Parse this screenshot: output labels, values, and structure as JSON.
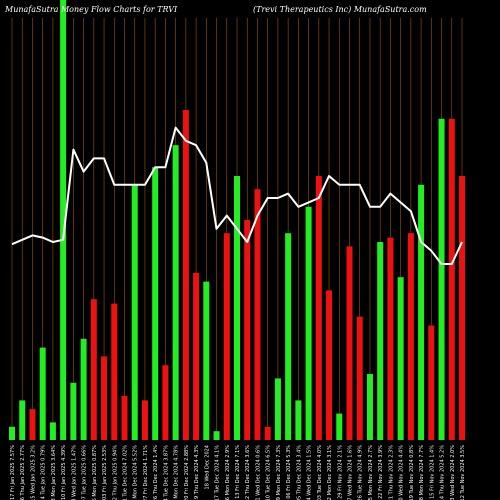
{
  "header": {
    "left": "MunafaSutra  Money Flow  Charts for TRVI",
    "right": "(Trevi   Therapeutics Inc)  MunafaSutra.com"
  },
  "colors": {
    "background": "#000000",
    "grid": "#a0550a",
    "up": "#22ee22",
    "down": "#ee1111",
    "line": "#ffffff"
  },
  "chart_data": {
    "type": "bar",
    "categories": [
      "17 Fri Jan 2025 7.57%",
      "16 Thu Jan 2025 2.77%",
      "15 Wed Jan 2025 3.2%",
      "14 Tue Jan 2025 0.79%",
      "13 Mon Jan 2025 3.64%",
      "10 Fri Jan 2025 4.39%",
      "08 Wed Jan 2025 1.47%",
      "07 Tue Jan 2025 0.66%",
      "06 Mon Jan 2025 0.87%",
      "03 Fri Jan 2025 2.53%",
      "02 Thu Jan 2025 0.94%",
      "31 Tue Dec 2024 7.02%",
      "30 Mon Dec 2024 5.52%",
      "27 Fri Dec 2024 1.71%",
      "26 Thu Dec 2024 1.4%",
      "24 Tue Dec 2024 3.87%",
      "23 Mon Dec 2024 4.78%",
      "20 Fri Dec 2024 2.88%",
      "19 Thu Dec 2024 4.3%",
      "18 Wed Dec 2024",
      "17 Tue Dec 2024 4.1%",
      "16 Mon Dec 2024 2.9%",
      "13 Fri Dec 2024 7.1%",
      "12 Thu Dec 2024 3.6%",
      "11 Wed Dec 2024 0.6%",
      "10 Tue Dec 2024 6.5%",
      "09 Mon Dec 2024 7.3%",
      "06 Fri Dec 2024 5.3%",
      "05 Thu Dec 2024 3.4%",
      "04 Wed Dec 2024 1.5%",
      "03 Tue Dec 2024 4.0%",
      "02 Mon Dec 2024 3.1%",
      "29 Fri Nov 2024 2.1%",
      "27 Wed Nov 2024 1.6%",
      "26 Tue Nov 2024 4.9%",
      "25 Mon Nov 2024 2.7%",
      "22 Fri Nov 2024 3.9%",
      "21 Thu Nov 2024 2.3%",
      "20 Wed Nov 2024 4.4%",
      "19 Tue Nov 2024 0.8%",
      "18 Mon Nov 2024 7.7%",
      "15 Fri Nov 2024 1.4%",
      "14 Thu Nov 2024 5.2%",
      "13 Wed Nov 2024 2.0%",
      "12 Tue Nov 2024 3.5%"
    ],
    "flow": [
      "up",
      "up",
      "down",
      "up",
      "up",
      "up",
      "up",
      "up",
      "down",
      "down",
      "down",
      "down",
      "up",
      "down",
      "up",
      "down",
      "up",
      "down",
      "down",
      "up",
      "up",
      "down",
      "up",
      "down",
      "down",
      "down",
      "up",
      "up",
      "up",
      "up",
      "down",
      "down",
      "up",
      "down",
      "down",
      "up",
      "up",
      "down",
      "up",
      "down",
      "up",
      "down",
      "up",
      "down",
      "down"
    ],
    "values": [
      3,
      9,
      7,
      21,
      4,
      100,
      13,
      23,
      32,
      19,
      31,
      10,
      58,
      9,
      62,
      17,
      67,
      75,
      38,
      36,
      2,
      47,
      60,
      50,
      57,
      3,
      14,
      47,
      9,
      53,
      60,
      34,
      6,
      44,
      28,
      15,
      45,
      46,
      37,
      47,
      58,
      26,
      73,
      73,
      60
    ],
    "line": [
      44.5,
      45.5,
      46.5,
      46,
      45,
      45.5,
      66,
      61,
      64,
      64,
      58,
      58,
      58,
      58,
      62,
      62,
      71,
      68,
      67,
      63,
      48,
      51,
      48,
      45,
      51,
      55,
      55,
      56,
      53,
      54,
      55,
      60,
      58,
      58,
      58,
      53,
      53,
      56,
      54,
      52,
      45,
      43,
      40,
      40,
      45
    ],
    "xlabel": "",
    "ylabel": "",
    "ylim": [
      0,
      100
    ],
    "grid": true
  }
}
